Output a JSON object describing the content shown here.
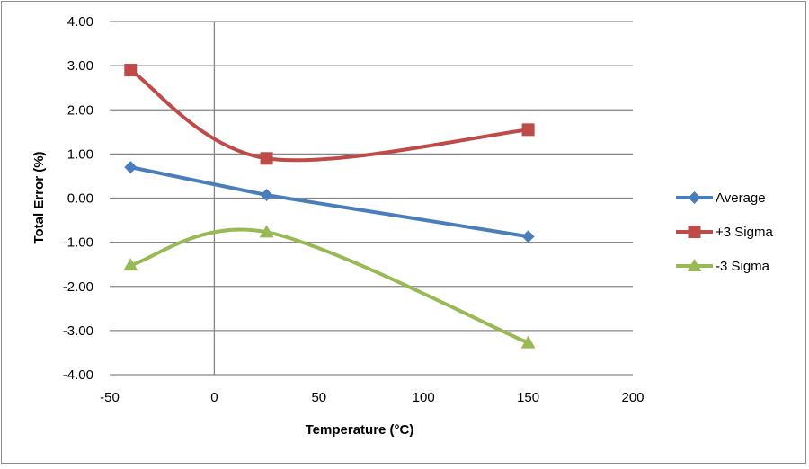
{
  "chart_data": {
    "type": "line",
    "title": "",
    "xlabel": "Temperature (°C)",
    "ylabel": "Total Error (%)",
    "xlim": [
      -50,
      200
    ],
    "ylim": [
      -4,
      4
    ],
    "xticks": [
      -50,
      0,
      50,
      100,
      150,
      200
    ],
    "xtick_labels": [
      "-50",
      "0",
      "50",
      "100",
      "150",
      "200"
    ],
    "yticks": [
      4,
      3,
      2,
      1,
      0,
      -1,
      -2,
      -3,
      -4
    ],
    "ytick_labels": [
      "4.00",
      "3.00",
      "2.00",
      "1.00",
      "0.00",
      "-1.00",
      "-2.00",
      "-3.00",
      "-4.00"
    ],
    "grid": "horizontal major gridlines",
    "legend_position": "right",
    "smoothed": true,
    "x": [
      -40,
      25,
      150
    ],
    "series": [
      {
        "name": "Average",
        "values": [
          0.7,
          0.07,
          -0.87
        ],
        "color": "#4a7ebb",
        "marker": "diamond"
      },
      {
        "name": "+3 Sigma",
        "values": [
          2.9,
          0.9,
          1.55
        ],
        "color": "#be4b48",
        "marker": "square"
      },
      {
        "name": "-3 Sigma",
        "values": [
          -1.52,
          -0.77,
          -3.28
        ],
        "color": "#98b954",
        "marker": "triangle"
      }
    ]
  }
}
